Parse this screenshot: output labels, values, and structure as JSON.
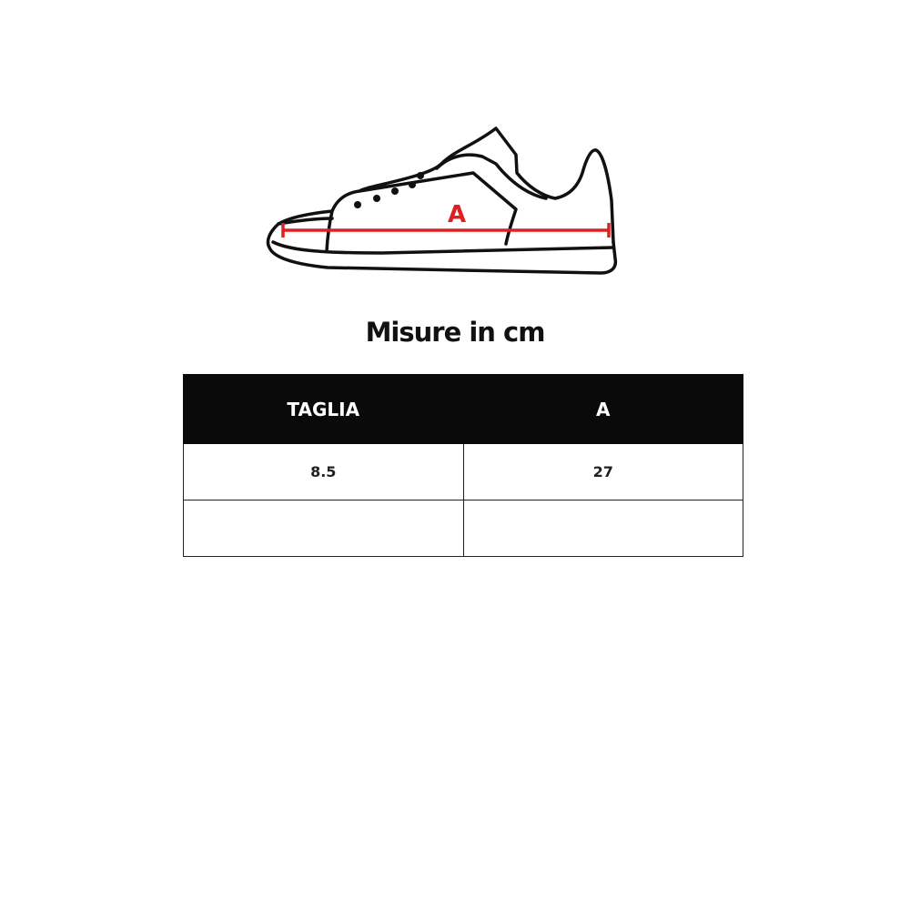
{
  "illustration": {
    "measure_label": "A",
    "measure_color": "#e02020",
    "icon": "sneaker-outline"
  },
  "title": "Misure in cm",
  "table": {
    "headers": [
      "TAGLIA",
      "A"
    ],
    "rows": [
      [
        "8.5",
        "27"
      ],
      [
        "",
        ""
      ]
    ]
  }
}
